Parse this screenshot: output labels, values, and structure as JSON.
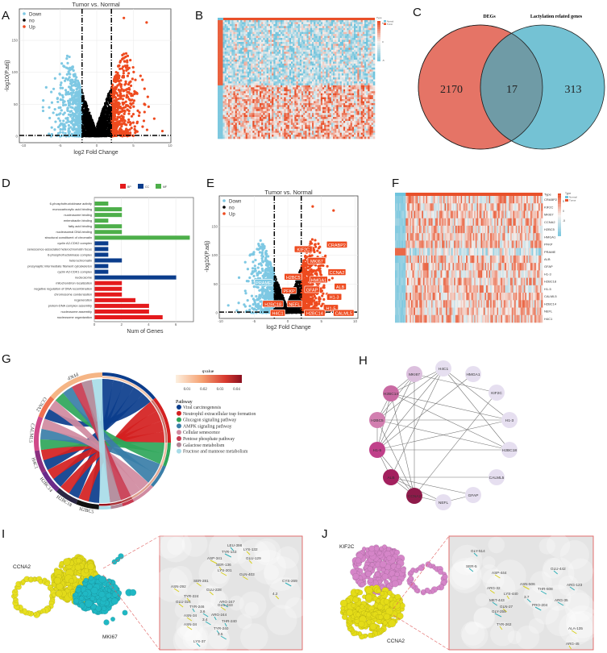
{
  "panels": {
    "A": "A",
    "B": "B",
    "C": "C",
    "D": "D",
    "E": "E",
    "F": "F",
    "G": "G",
    "H": "H",
    "I": "I",
    "J": "J"
  },
  "colors": {
    "down": "#7ec8e3",
    "no": "#000000",
    "up": "#ee4a1e",
    "bp": "#e41a1c",
    "cc": "#0b3d8c",
    "mf": "#4daf4a",
    "heat_low": "#6ec3dd",
    "heat_high": "#e8502a",
    "venn_left": "#e57466",
    "venn_right": "#74c2d4",
    "venn_overlap": "#6f9ba6"
  },
  "chart_data": [
    {
      "id": "A",
      "type": "scatter",
      "title": "Tumor vs. Normal",
      "xlabel": "log2 Fold Change",
      "ylabel": "-log10(P.adj)",
      "xlim": [
        -10.5,
        10.5
      ],
      "ylim": [
        -5,
        195
      ],
      "xticks": [
        -10,
        -5,
        0,
        5,
        10
      ],
      "yticks": [
        0,
        50,
        100,
        150
      ],
      "legend": [
        "Down",
        "no",
        "Up"
      ],
      "legend_position": "top-left",
      "grid": true,
      "thresholds": {
        "log2fc": [
          -2,
          2
        ],
        "neg_log10_padj": 1.3
      }
    },
    {
      "id": "B",
      "type": "heatmap",
      "annotation": "Type",
      "groups": [
        "Normal",
        "Tumor"
      ],
      "colorbar_ticks": [
        "5",
        "0",
        "-5"
      ]
    },
    {
      "id": "C",
      "type": "venn",
      "sets": [
        "DEGs",
        "Lactylation related genes"
      ],
      "values": {
        "left_only": "2170",
        "overlap": "17",
        "right_only": "313"
      }
    },
    {
      "id": "D",
      "type": "bar",
      "orientation": "horizontal",
      "xlabel": "Num of Genes",
      "xticks": [
        0,
        2,
        4,
        6
      ],
      "xlim": [
        0,
        7.3
      ],
      "legend": [
        "BP",
        "CC",
        "MF"
      ],
      "legend_position": "top",
      "grid": true,
      "categories": [
        "6-phosphofructokinase activity",
        "monocarboxylic acid binding",
        "nucleosome binding",
        "enterobactin binding",
        "fatty acid binding",
        "nucleosomal DNA binding",
        "structural constituent of chromatin",
        "cyclin A2-CDK2 complex",
        "senescence-associated heterochromatin focus",
        "6-phosphofructokinase complex",
        "heterochromatin",
        "presynaptic intermediate filament cytoskeleton",
        "cyclin A2-CDK1 complex",
        "nucleosome",
        "mitochondrion localization",
        "negative regulation of DNA recombination",
        "chromosome condensation",
        "regeneration",
        "protein-DNA complex assembly",
        "nucleosome assembly",
        "nucleosome organization"
      ],
      "values": [
        1,
        2,
        2,
        1,
        2,
        2,
        7,
        1,
        1,
        1,
        2,
        1,
        1,
        6,
        2,
        2,
        2,
        3,
        4,
        4,
        5
      ],
      "groups": [
        "MF",
        "MF",
        "MF",
        "MF",
        "MF",
        "MF",
        "MF",
        "CC",
        "CC",
        "CC",
        "CC",
        "CC",
        "CC",
        "CC",
        "BP",
        "BP",
        "BP",
        "BP",
        "BP",
        "BP",
        "BP"
      ]
    },
    {
      "id": "E",
      "type": "scatter",
      "title": "Tumor vs. Normal",
      "xlabel": "log2 Fold Change",
      "ylabel": "-log10(P.adj)",
      "xlim": [
        -10.5,
        10.5
      ],
      "ylim": [
        -5,
        195
      ],
      "xticks": [
        -10,
        -5,
        0,
        5,
        10
      ],
      "yticks": [
        0,
        50,
        100,
        150
      ],
      "legend": [
        "Down",
        "no",
        "Up"
      ],
      "legend_position": "top-left",
      "grid": true,
      "thresholds": {
        "log2fc": [
          -2,
          2
        ],
        "neg_log10_padj": 1.3
      },
      "labels": [
        {
          "text": "CRABP2",
          "x": 7.3,
          "y": 118,
          "dir": "up"
        },
        {
          "text": "KIF2C",
          "x": 2.3,
          "y": 110,
          "dir": "up"
        },
        {
          "text": "MKI67",
          "x": 4.3,
          "y": 90,
          "dir": "up"
        },
        {
          "text": "CCNA2",
          "x": 7.3,
          "y": 70,
          "dir": "up"
        },
        {
          "text": "H2BC5",
          "x": 0.8,
          "y": 62,
          "dir": "up"
        },
        {
          "text": "HMGA1",
          "x": 4.6,
          "y": 57,
          "dir": "up"
        },
        {
          "text": "PRAME",
          "x": -3.6,
          "y": 52,
          "dir": "down"
        },
        {
          "text": "PFKP",
          "x": 0.2,
          "y": 38,
          "dir": "up"
        },
        {
          "text": "GFAP",
          "x": 3.6,
          "y": 40,
          "dir": "up"
        },
        {
          "text": "ALB",
          "x": 7.8,
          "y": 45,
          "dir": "up"
        },
        {
          "text": "H1-3",
          "x": 6.9,
          "y": 27,
          "dir": "up"
        },
        {
          "text": "H2BC18",
          "x": -2.2,
          "y": 15,
          "dir": "up"
        },
        {
          "text": "NEFL",
          "x": 1.0,
          "y": 15,
          "dir": "up"
        },
        {
          "text": "H1-5",
          "x": 6.4,
          "y": 8,
          "dir": "up"
        },
        {
          "text": "H4C1",
          "x": -1.5,
          "y": -1,
          "dir": "up"
        },
        {
          "text": "H2BC14",
          "x": 4.0,
          "y": -1,
          "dir": "up"
        },
        {
          "text": "CALML5",
          "x": 8.3,
          "y": -1,
          "dir": "up"
        }
      ]
    },
    {
      "id": "F",
      "type": "heatmap",
      "annotation": "Type",
      "groups": [
        "Normal",
        "Tumor"
      ],
      "colorbar_ticks": [
        "5",
        "0",
        "-5"
      ],
      "rows": [
        "CRABP2",
        "KIF2C",
        "MKI67",
        "CCNA2",
        "H2BC5",
        "HMGA1",
        "PFKP",
        "PRAME",
        "ALB",
        "GFAP",
        "H1-3",
        "H2BC18",
        "H1-5",
        "CALML5",
        "H2BC14",
        "NEFL",
        "H4C1"
      ]
    },
    {
      "id": "G",
      "type": "chord",
      "colorbar_title": "qvalue",
      "colorbar_ticks": [
        "0.01",
        "0.02",
        "0.03",
        "0.04"
      ],
      "legend_title": "Pathway",
      "genes": [
        "H2BC5",
        "H2BC18",
        "H2BC14",
        "H4C1",
        "CALML5",
        "CCNA2",
        "PFKP"
      ],
      "gene_colors": [
        "#111111",
        "#2c2745",
        "#6a2a8a",
        "#8b2f80",
        "#d04a8a",
        "#f07050",
        "#f5b585"
      ],
      "pathways": [
        {
          "name": "Viral carcinogenesis",
          "color": "#0b3d8c",
          "qvalue": 0.004
        },
        {
          "name": "Neutrophil extracellular trap formation",
          "color": "#d42020",
          "qvalue": 0.02
        },
        {
          "name": "Glucagon signaling pathway",
          "color": "#2fa65a",
          "qvalue": 0.006
        },
        {
          "name": "AMPK signaling pathway",
          "color": "#3a7ea8",
          "qvalue": 0.01
        },
        {
          "name": "Cellular senescence",
          "color": "#d08aa0",
          "qvalue": 0.012
        },
        {
          "name": "Pentose phosphate pathway",
          "color": "#c83a50",
          "qvalue": 0.03
        },
        {
          "name": "Galactose metabolism",
          "color": "#b08898",
          "qvalue": 0.035
        },
        {
          "name": "Fructose and mannose metabolism",
          "color": "#a8dce8",
          "qvalue": 0.04
        }
      ],
      "links": [
        [
          "H2BC5",
          "Viral carcinogenesis"
        ],
        [
          "H2BC18",
          "Viral carcinogenesis"
        ],
        [
          "H2BC14",
          "Viral carcinogenesis"
        ],
        [
          "H4C1",
          "Viral carcinogenesis"
        ],
        [
          "CCNA2",
          "Viral carcinogenesis"
        ],
        [
          "H2BC5",
          "Neutrophil extracellular trap formation"
        ],
        [
          "H2BC18",
          "Neutrophil extracellular trap formation"
        ],
        [
          "H2BC14",
          "Neutrophil extracellular trap formation"
        ],
        [
          "H4C1",
          "Neutrophil extracellular trap formation"
        ],
        [
          "CALML5",
          "Glucagon signaling pathway"
        ],
        [
          "PFKP",
          "Glucagon signaling pathway"
        ],
        [
          "CALML5",
          "AMPK signaling pathway"
        ],
        [
          "PFKP",
          "AMPK signaling pathway"
        ],
        [
          "CALML5",
          "Cellular senescence"
        ],
        [
          "CCNA2",
          "Cellular senescence"
        ],
        [
          "PFKP",
          "Pentose phosphate pathway"
        ],
        [
          "PFKP",
          "Galactose metabolism"
        ],
        [
          "PFKP",
          "Fructose and mannose metabolism"
        ]
      ]
    },
    {
      "id": "H",
      "type": "network",
      "nodes": [
        {
          "name": "H4C1",
          "color": "#e6dff0"
        },
        {
          "name": "HMGA1",
          "color": "#e6dff0"
        },
        {
          "name": "MKI67",
          "color": "#dcc0de"
        },
        {
          "name": "KIF2C",
          "color": "#e6dff0"
        },
        {
          "name": "H2BC14",
          "color": "#c96aa3"
        },
        {
          "name": "H1-3",
          "color": "#e6dff0"
        },
        {
          "name": "H2BC5",
          "color": "#d27fb0"
        },
        {
          "name": "H2BC18",
          "color": "#e6dff0"
        },
        {
          "name": "H1-5",
          "color": "#c0408a"
        },
        {
          "name": "CALML5",
          "color": "#e6dff0"
        },
        {
          "name": "ALB",
          "color": "#a3205e"
        },
        {
          "name": "GFAP",
          "color": "#e6dff0"
        },
        {
          "name": "CCNA2",
          "color": "#8e1a4a"
        },
        {
          "name": "NEFL",
          "color": "#e6dff0"
        }
      ],
      "edges": [
        [
          "H4C1",
          "H2BC14"
        ],
        [
          "H4C1",
          "H2BC5"
        ],
        [
          "H4C1",
          "H1-5"
        ],
        [
          "H4C1",
          "H1-3"
        ],
        [
          "H4C1",
          "H2BC18"
        ],
        [
          "H4C1",
          "ALB"
        ],
        [
          "MKI67",
          "KIF2C"
        ],
        [
          "MKI67",
          "H2BC14"
        ],
        [
          "MKI67",
          "CCNA2"
        ],
        [
          "MKI67",
          "H1-5"
        ],
        [
          "MKI67",
          "H2BC5"
        ],
        [
          "HMGA1",
          "H1-5"
        ],
        [
          "KIF2C",
          "CCNA2"
        ],
        [
          "H2BC14",
          "H1-3"
        ],
        [
          "H2BC14",
          "H2BC18"
        ],
        [
          "H2BC14",
          "H2BC5"
        ],
        [
          "H2BC14",
          "H1-5"
        ],
        [
          "H2BC14",
          "CCNA2"
        ],
        [
          "H2BC5",
          "H1-3"
        ],
        [
          "H2BC5",
          "H2BC18"
        ],
        [
          "H2BC5",
          "H1-5"
        ],
        [
          "H2BC5",
          "CCNA2"
        ],
        [
          "H1-5",
          "H2BC18"
        ],
        [
          "H1-5",
          "H1-3"
        ],
        [
          "H1-5",
          "ALB"
        ],
        [
          "H1-5",
          "CCNA2"
        ],
        [
          "ALB",
          "CALML5"
        ],
        [
          "ALB",
          "CCNA2"
        ],
        [
          "ALB",
          "GFAP"
        ],
        [
          "ALB",
          "NEFL"
        ],
        [
          "CCNA2",
          "NEFL"
        ],
        [
          "NEFL",
          "GFAP"
        ]
      ]
    }
  ],
  "docking": {
    "I": {
      "protein_a": "CCNA2",
      "protein_b": "MKI67",
      "residues": [
        "LEU-398",
        "LYS-132",
        "TYR-143",
        "GLU-129",
        "ASP-341",
        "SER-136",
        "LYS-201",
        "GLN-403",
        "SER-281",
        "ASN-292",
        "TYR-224",
        "GLU-228",
        "GLU-324",
        "ARG-247",
        "TYR-246",
        "GLU-243",
        "ASN-34",
        "ARG-244",
        "THR-240",
        "ASN-34",
        "TYR-240",
        "3.5",
        "LYS-37",
        "CYS-269",
        "3.6",
        "3.4",
        "4.2"
      ]
    },
    "J": {
      "protein_a": "KIF2C",
      "protein_b": "CCNA2",
      "residues": [
        "GLY-514",
        "SER-5",
        "ASP-444",
        "ARG-32",
        "ASN-506",
        "THR-508",
        "LYS-440",
        "MET-443",
        "PRO-204",
        "GLN-27",
        "GLU-442",
        "ARG-123",
        "ARG-35",
        "ALA-135",
        "ARG-45",
        "TYR-262",
        "GLY-255",
        "3.7"
      ]
    }
  }
}
